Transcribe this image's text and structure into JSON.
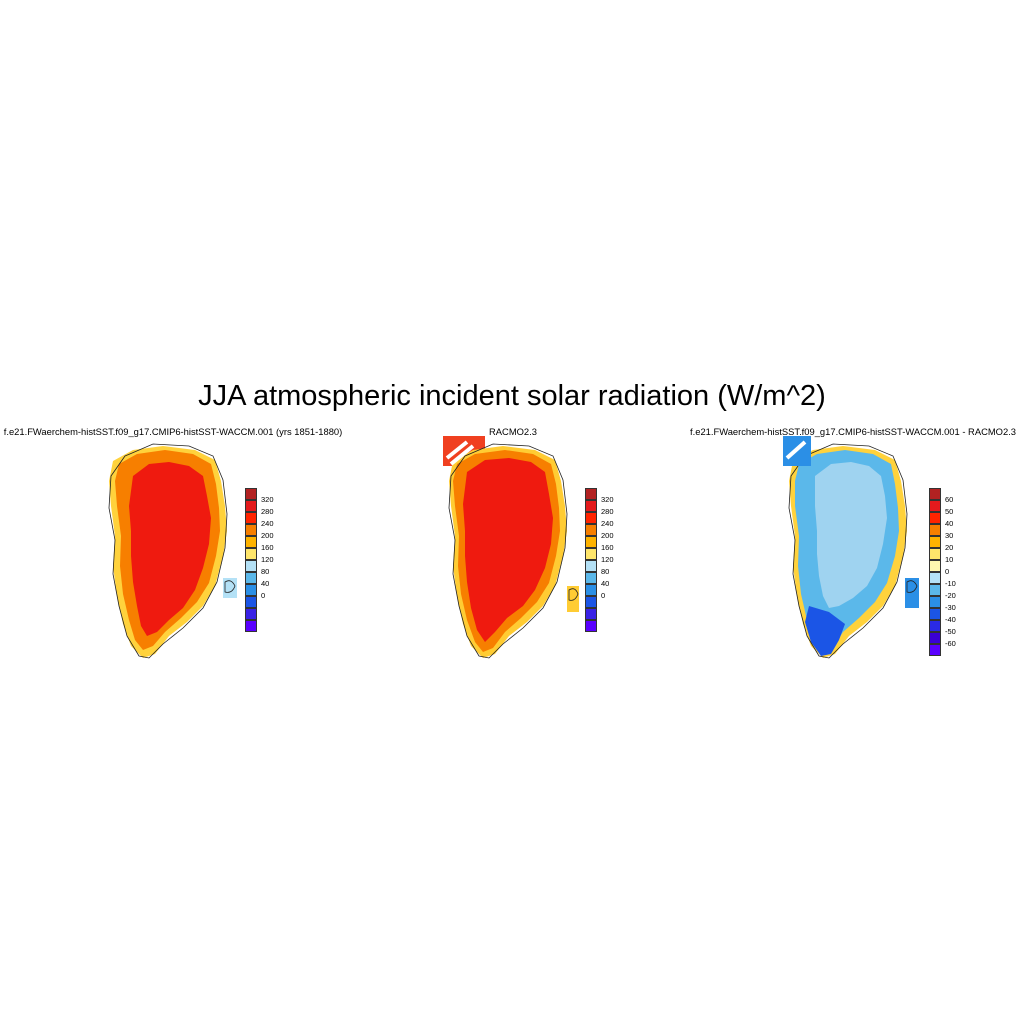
{
  "title": "JJA atmospheric incident solar radiation (W/m^2)",
  "panels": [
    {
      "title": "f.e21.FWaerchem-histSST.f09_g17.CMIP6-histSST-WACCM.001 (yrs 1851-1880)",
      "colorbar": {
        "labels": [
          "320",
          "280",
          "240",
          "200",
          "160",
          "120",
          "80",
          "40",
          "0"
        ],
        "colors": [
          "#b22222",
          "#e41a1c",
          "#ff2400",
          "#f77f00",
          "#ffb300",
          "#ffe66b",
          "#b4e1f6",
          "#5bb8ea",
          "#2b8fe6",
          "#1b55e6",
          "#3922e6",
          "#5a00ff"
        ]
      },
      "dominant": "#ef1a0f",
      "ring": "#f77f00",
      "edge": "#ffe66b"
    },
    {
      "title": "RACMO2.3",
      "colorbar": {
        "labels": [
          "320",
          "280",
          "240",
          "200",
          "160",
          "120",
          "80",
          "40",
          "0"
        ],
        "colors": [
          "#b22222",
          "#e41a1c",
          "#ff2400",
          "#f77f00",
          "#ffb300",
          "#ffe66b",
          "#b4e1f6",
          "#5bb8ea",
          "#2b8fe6",
          "#1b55e6",
          "#3922e6",
          "#5a00ff"
        ]
      },
      "dominant": "#ef1a0f",
      "ring": "#f77f00",
      "edge": "#ffcc33"
    },
    {
      "title": "f.e21.FWaerchem-histSST.f09_g17.CMIP6-histSST-WACCM.001 - RACMO2.3",
      "colorbar": {
        "labels": [
          "60",
          "50",
          "40",
          "30",
          "20",
          "10",
          "0",
          "-10",
          "-20",
          "-30",
          "-40",
          "-50",
          "-60"
        ],
        "colors": [
          "#b22222",
          "#e41a1c",
          "#ff2400",
          "#f77f00",
          "#ffb300",
          "#ffe66b",
          "#fff7b0",
          "#b4e1f6",
          "#5bb8ea",
          "#2b8fe6",
          "#1b55e6",
          "#2a2ae6",
          "#3a00d6",
          "#5a00ff"
        ]
      },
      "dominant": "#9fd3f0",
      "ring": "#5bb8ea",
      "edge": "#ffd23c"
    }
  ]
}
